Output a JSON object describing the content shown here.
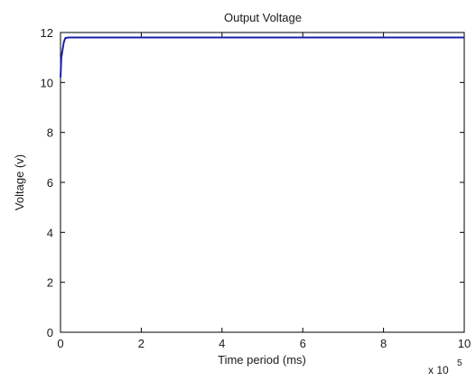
{
  "chart_data": {
    "type": "line",
    "title": "Output Voltage",
    "xlabel": "Time period (ms)",
    "ylabel": "Voltage (v)",
    "x_multiplier_label": "x 10",
    "x_multiplier_exponent": "5",
    "xlim": [
      0,
      10
    ],
    "ylim": [
      0,
      12
    ],
    "xticks": [
      0,
      2,
      4,
      6,
      8,
      10
    ],
    "yticks": [
      0,
      2,
      4,
      6,
      8,
      10,
      12
    ],
    "grid": false,
    "series": [
      {
        "color": "#1f1fa8",
        "x": [
          0,
          0.02,
          0.05,
          0.08,
          0.12,
          0.2,
          0.5,
          1,
          2,
          4,
          6,
          8,
          10
        ],
        "y": [
          10.2,
          11.0,
          11.3,
          11.6,
          11.78,
          11.8,
          11.8,
          11.8,
          11.8,
          11.8,
          11.8,
          11.8,
          11.8
        ]
      }
    ]
  }
}
